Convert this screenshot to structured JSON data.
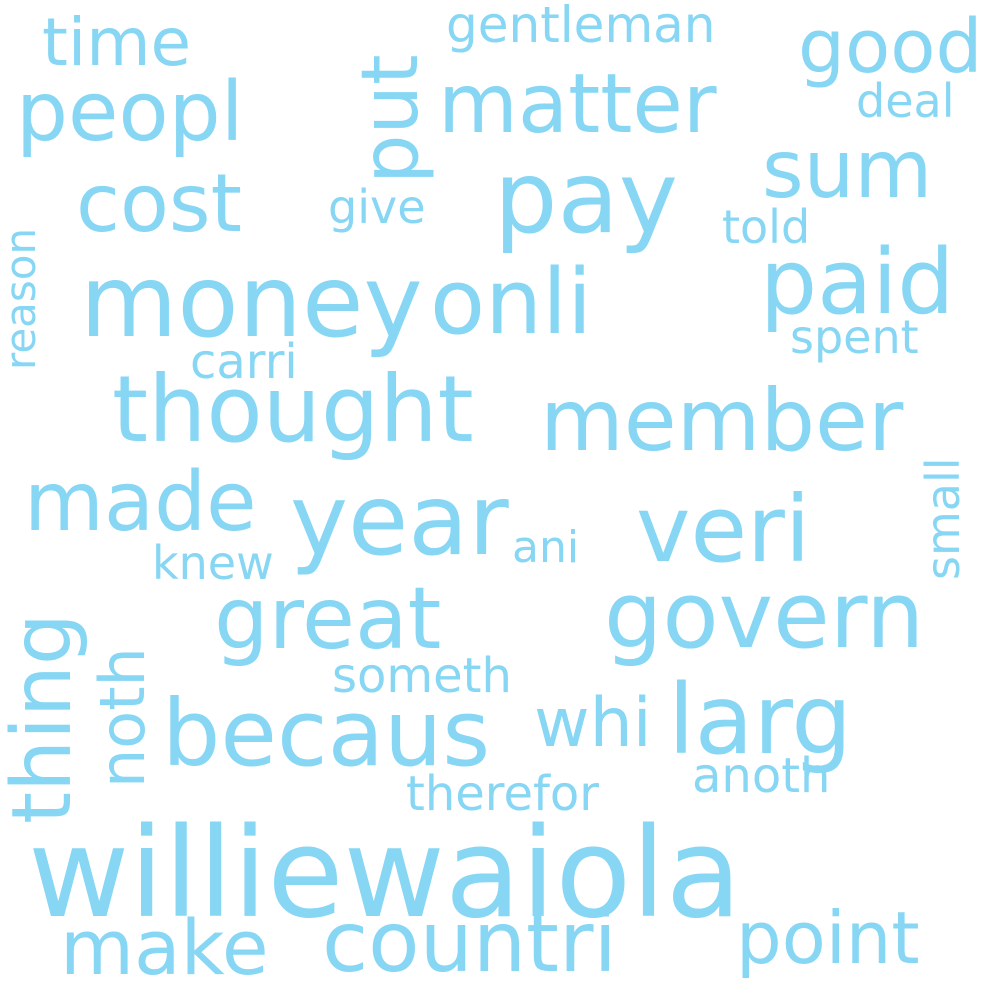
{
  "cloud": {
    "color": "#86d6f4",
    "background": "#ffffff",
    "words": [
      {
        "text": "williewaiola"
      },
      {
        "text": "money"
      },
      {
        "text": "thought"
      },
      {
        "text": "becaus"
      },
      {
        "text": "member"
      },
      {
        "text": "govern"
      },
      {
        "text": "year"
      },
      {
        "text": "pay"
      },
      {
        "text": "onli"
      },
      {
        "text": "veri"
      },
      {
        "text": "paid"
      },
      {
        "text": "great"
      },
      {
        "text": "countri"
      },
      {
        "text": "larg"
      },
      {
        "text": "made"
      },
      {
        "text": "matter"
      },
      {
        "text": "peopl"
      },
      {
        "text": "make"
      },
      {
        "text": "cost"
      },
      {
        "text": "thing"
      },
      {
        "text": "sum"
      },
      {
        "text": "point"
      },
      {
        "text": "good"
      },
      {
        "text": "put"
      },
      {
        "text": "time"
      },
      {
        "text": "noth"
      },
      {
        "text": "whi"
      },
      {
        "text": "anoth"
      },
      {
        "text": "someth"
      },
      {
        "text": "therefor"
      },
      {
        "text": "gentleman"
      },
      {
        "text": "spent"
      },
      {
        "text": "carri"
      },
      {
        "text": "knew"
      },
      {
        "text": "give"
      },
      {
        "text": "told"
      },
      {
        "text": "deal"
      },
      {
        "text": "ani"
      },
      {
        "text": "small"
      },
      {
        "text": "reason"
      }
    ]
  }
}
